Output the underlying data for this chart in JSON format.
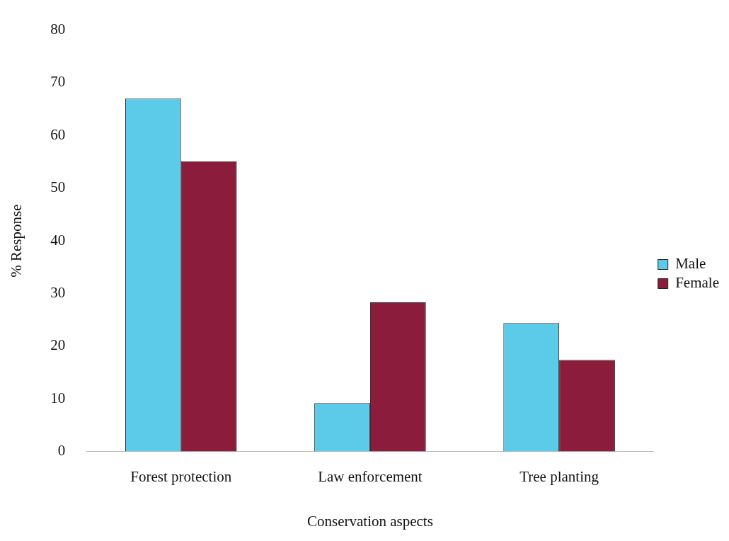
{
  "chart_data": {
    "type": "bar",
    "xlabel": "Conservation aspects",
    "ylabel": "% Response",
    "categories": [
      "Forest protection",
      "Law enforcement",
      "Tree planting"
    ],
    "series": [
      {
        "name": "Male",
        "color": "#5ccbe9",
        "values": [
          67,
          9.2,
          24.4
        ]
      },
      {
        "name": "Female",
        "color": "#8c1c3c",
        "values": [
          55.1,
          28.3,
          17.4
        ]
      }
    ],
    "ylim": [
      0,
      80
    ],
    "yticks": [
      0,
      10,
      20,
      30,
      40,
      50,
      60,
      70,
      80
    ],
    "grid": false,
    "legend": "right"
  }
}
